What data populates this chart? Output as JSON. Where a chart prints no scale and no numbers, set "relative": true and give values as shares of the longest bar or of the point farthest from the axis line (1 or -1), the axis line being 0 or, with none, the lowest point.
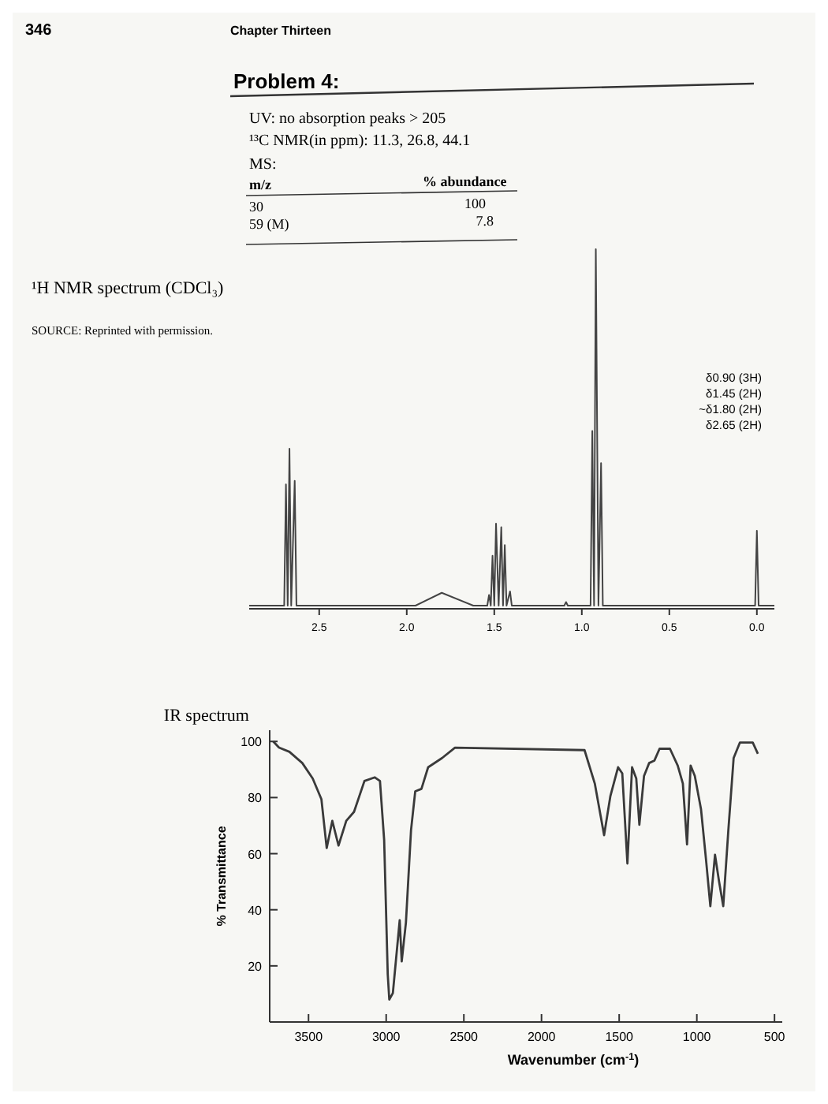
{
  "chart_data": [
    {
      "type": "other",
      "title": "Problem 4:",
      "annotations": [
        "346",
        "Chapter Thirteen",
        "UV: no absorption peaks > 205",
        "¹³C NMR(in ppm): 11.3, 26.8, 44.1",
        "MS:",
        "m/z",
        "% abundance",
        "30",
        "100",
        "59 (M)",
        "7.8"
      ]
    },
    {
      "type": "line",
      "title": "¹H NMR spectrum (CDCl₃)",
      "relative": true,
      "tick_labels": "x",
      "line_style": "solid",
      "xlim": [
        2.9,
        -0.1
      ],
      "xticks": [
        {
          "value": 2.5,
          "label": "2.5"
        },
        {
          "value": 2.0,
          "label": "2.0"
        },
        {
          "value": 1.5,
          "label": "1.5"
        },
        {
          "value": 1.0,
          "label": "1.0"
        },
        {
          "value": 0.5,
          "label": "0.5"
        },
        {
          "value": 0,
          "label": "0.0"
        }
      ],
      "annotations": [
        "SOURCE: Reprinted with permission.",
        "δ0.90 (3H)",
        "δ1.45 (2H)",
        "~δ1.80 (2H)",
        "δ2.65 (2H)"
      ],
      "series": [
        {
          "color": "#444444",
          "x": [
            2.9,
            2.7,
            2.69,
            2.68,
            2.67,
            2.66,
            2.64,
            2.63,
            1.95,
            1.8,
            1.62,
            1.54,
            1.53,
            1.52,
            1.51,
            1.5,
            1.49,
            1.475,
            1.46,
            1.45,
            1.44,
            1.43,
            1.41,
            1.4,
            1.1,
            1.09,
            1.08,
            0.95,
            0.94,
            0.93,
            0.92,
            0.905,
            0.89,
            0.88,
            0.01,
            0,
            -0.01,
            -0.1
          ],
          "values": [
            0,
            0,
            0.34,
            0,
            0.44,
            0,
            0.35,
            0,
            0,
            0.036,
            0,
            0,
            0.03,
            0,
            0.14,
            0,
            0.23,
            0,
            0.22,
            0,
            0.17,
            0,
            0.04,
            0,
            0,
            0.01,
            0,
            0,
            0.49,
            0,
            1,
            0,
            0.4,
            0,
            0,
            0.21,
            0,
            0
          ]
        }
      ]
    },
    {
      "type": "line",
      "title": "IR spectrum",
      "xlabel": "Wavenumber (cm$^{-1}$)",
      "ylabel": "% Transmittance",
      "line_style": "solid",
      "xlim": [
        3750,
        450
      ],
      "ylim": [
        0,
        104
      ],
      "xticks": [
        3500,
        3000,
        2500,
        2000,
        1500,
        1000,
        500
      ],
      "yticks": [
        20,
        40,
        60,
        80,
        100
      ],
      "series": [
        {
          "color": "#3a3a3a",
          "x": [
            3727,
            3690,
            3623,
            3540,
            3473,
            3417,
            3383,
            3347,
            3307,
            3257,
            3207,
            3140,
            3073,
            3040,
            3013,
            2990,
            2980,
            2957,
            2913,
            2900,
            2873,
            2840,
            2813,
            2773,
            2730,
            2640,
            2557,
            1723,
            1657,
            1597,
            1557,
            1507,
            1480,
            1447,
            1417,
            1390,
            1370,
            1340,
            1307,
            1273,
            1240,
            1173,
            1123,
            1090,
            1063,
            1040,
            1013,
            973,
            940,
            913,
            883,
            857,
            830,
            797,
            763,
            723,
            640,
            607
          ],
          "values": [
            100,
            97.8,
            96.3,
            92.3,
            86.8,
            79.4,
            62,
            71.7,
            62.9,
            71.7,
            74.9,
            85.9,
            87.2,
            85.9,
            64.8,
            17,
            8,
            10.3,
            36.3,
            21.6,
            35.4,
            68.4,
            82.2,
            83.1,
            90.8,
            94.1,
            97.8,
            96.9,
            85,
            66.6,
            80.4,
            90.8,
            88.6,
            56.5,
            90.8,
            86.8,
            70.3,
            87.7,
            92.3,
            93.2,
            97.4,
            97.4,
            91.4,
            85,
            63.3,
            91.4,
            87.7,
            75.8,
            57.4,
            41.3,
            59.6,
            50.1,
            41.3,
            68.4,
            94.1,
            99.6,
            99.6,
            95.6
          ]
        }
      ]
    }
  ]
}
